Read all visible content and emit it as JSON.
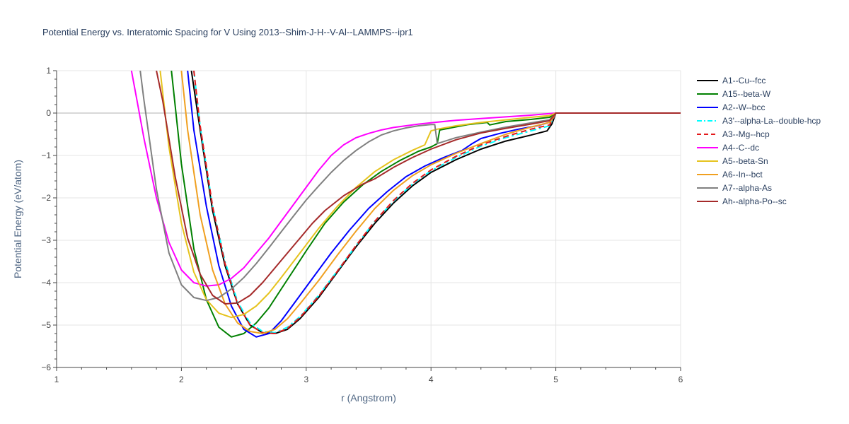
{
  "chart_data": {
    "type": "line",
    "title": "Potential Energy vs. Interatomic Spacing for V Using 2013--Shim-J-H--V-Al--LAMMPS--ipr1",
    "xlabel": "r (Angstrom)",
    "ylabel": "Potential Energy (eV/atom)",
    "xlim": [
      1,
      6
    ],
    "ylim": [
      -6,
      1
    ],
    "xticks": [
      1,
      2,
      3,
      4,
      5,
      6
    ],
    "yticks": [
      -6,
      -5,
      -4,
      -3,
      -2,
      -1,
      0,
      1
    ],
    "xtick_labels": [
      "1",
      "2",
      "3",
      "4",
      "5",
      "6"
    ],
    "ytick_labels": [
      "−6",
      "−5",
      "−4",
      "−3",
      "−2",
      "−1",
      "0",
      "1"
    ],
    "grid": true,
    "legend_position": "top-right",
    "series": [
      {
        "name": "A1--Cu--fcc",
        "color": "#000000",
        "dash": "solid",
        "x": [
          2.08,
          2.15,
          2.25,
          2.35,
          2.45,
          2.55,
          2.65,
          2.75,
          2.85,
          2.95,
          3.1,
          3.25,
          3.4,
          3.55,
          3.7,
          3.85,
          4.0,
          4.2,
          4.4,
          4.6,
          4.8,
          4.93,
          4.97,
          5.0,
          6.0
        ],
        "y": [
          1,
          -0.4,
          -2.3,
          -3.6,
          -4.5,
          -5.0,
          -5.18,
          -5.2,
          -5.1,
          -4.85,
          -4.35,
          -3.75,
          -3.15,
          -2.6,
          -2.12,
          -1.72,
          -1.4,
          -1.1,
          -0.85,
          -0.66,
          -0.52,
          -0.42,
          -0.25,
          0,
          0
        ]
      },
      {
        "name": "A15--beta-W",
        "color": "#008000",
        "dash": "solid",
        "x": [
          1.92,
          2.0,
          2.1,
          2.2,
          2.3,
          2.4,
          2.5,
          2.6,
          2.7,
          2.8,
          2.9,
          3.0,
          3.15,
          3.3,
          3.45,
          3.6,
          3.75,
          3.9,
          4.0,
          4.05,
          4.07,
          4.3,
          4.45,
          4.47,
          4.6,
          4.8,
          4.95,
          5.0,
          6.0
        ],
        "y": [
          1,
          -1.2,
          -3.2,
          -4.4,
          -5.05,
          -5.28,
          -5.2,
          -4.95,
          -4.6,
          -4.15,
          -3.7,
          -3.25,
          -2.6,
          -2.1,
          -1.7,
          -1.38,
          -1.12,
          -0.9,
          -0.8,
          -0.72,
          -0.4,
          -0.27,
          -0.22,
          -0.28,
          -0.2,
          -0.15,
          -0.1,
          0,
          0
        ]
      },
      {
        "name": "A2--W--bcc",
        "color": "#0000ff",
        "dash": "solid",
        "x": [
          2.05,
          2.1,
          2.2,
          2.3,
          2.4,
          2.5,
          2.6,
          2.7,
          2.8,
          2.9,
          3.05,
          3.2,
          3.35,
          3.5,
          3.65,
          3.8,
          3.95,
          4.1,
          4.25,
          4.3,
          4.33,
          4.4,
          4.55,
          4.7,
          4.85,
          4.95,
          5.0,
          6.0
        ],
        "y": [
          1,
          -0.4,
          -2.2,
          -3.6,
          -4.55,
          -5.1,
          -5.28,
          -5.2,
          -4.9,
          -4.5,
          -3.9,
          -3.3,
          -2.75,
          -2.25,
          -1.85,
          -1.5,
          -1.25,
          -1.05,
          -0.88,
          -0.78,
          -0.72,
          -0.6,
          -0.48,
          -0.38,
          -0.3,
          -0.22,
          0,
          0
        ]
      },
      {
        "name": "A3'--alpha-La--double-hcp",
        "color": "#00ffff",
        "dash": "dashdot",
        "x": [
          2.1,
          2.15,
          2.25,
          2.35,
          2.45,
          2.55,
          2.65,
          2.75,
          2.85,
          2.95,
          3.1,
          3.25,
          3.4,
          3.55,
          3.7,
          3.85,
          4.0,
          4.2,
          4.4,
          4.6,
          4.8,
          4.95,
          5.0,
          6.0
        ],
        "y": [
          1,
          -0.3,
          -2.2,
          -3.5,
          -4.45,
          -4.95,
          -5.15,
          -5.18,
          -5.05,
          -4.8,
          -4.3,
          -3.72,
          -3.12,
          -2.55,
          -2.08,
          -1.68,
          -1.36,
          -1.05,
          -0.78,
          -0.58,
          -0.42,
          -0.3,
          0,
          0
        ]
      },
      {
        "name": "A3--Mg--hcp",
        "color": "#e31a1c",
        "dash": "dash",
        "x": [
          2.1,
          2.15,
          2.25,
          2.35,
          2.45,
          2.55,
          2.65,
          2.75,
          2.85,
          2.95,
          3.1,
          3.25,
          3.4,
          3.55,
          3.7,
          3.85,
          4.0,
          4.2,
          4.4,
          4.6,
          4.8,
          4.95,
          5.0,
          6.0
        ],
        "y": [
          1,
          -0.3,
          -2.2,
          -3.55,
          -4.5,
          -5.0,
          -5.18,
          -5.2,
          -5.08,
          -4.82,
          -4.32,
          -3.73,
          -3.12,
          -2.55,
          -2.06,
          -1.66,
          -1.34,
          -1.02,
          -0.75,
          -0.55,
          -0.38,
          -0.28,
          0,
          0
        ]
      },
      {
        "name": "A4--C--dc",
        "color": "#ff00ff",
        "dash": "solid",
        "x": [
          1.6,
          1.65,
          1.7,
          1.8,
          1.9,
          2.0,
          2.1,
          2.2,
          2.3,
          2.4,
          2.5,
          2.6,
          2.7,
          2.8,
          2.9,
          3.0,
          3.1,
          3.2,
          3.3,
          3.4,
          3.5,
          3.6,
          3.7,
          3.8,
          3.9,
          4.0,
          4.2,
          4.4,
          4.6,
          4.8,
          5.0,
          6.0
        ],
        "y": [
          1,
          0.2,
          -0.6,
          -2.0,
          -3.05,
          -3.7,
          -4.0,
          -4.08,
          -4.05,
          -3.9,
          -3.65,
          -3.3,
          -2.95,
          -2.55,
          -2.15,
          -1.75,
          -1.35,
          -1.0,
          -0.75,
          -0.58,
          -0.48,
          -0.4,
          -0.34,
          -0.3,
          -0.26,
          -0.23,
          -0.17,
          -0.13,
          -0.09,
          -0.05,
          0,
          0
        ]
      },
      {
        "name": "A5--beta-Sn",
        "color": "#e6c31e",
        "dash": "solid",
        "x": [
          1.83,
          1.9,
          2.0,
          2.1,
          2.2,
          2.3,
          2.4,
          2.5,
          2.6,
          2.7,
          2.8,
          2.95,
          3.1,
          3.25,
          3.4,
          3.55,
          3.7,
          3.85,
          3.95,
          4.0,
          4.05,
          4.2,
          4.4,
          4.6,
          4.8,
          4.95,
          5.0,
          6.0
        ],
        "y": [
          1,
          -0.8,
          -2.6,
          -3.75,
          -4.4,
          -4.72,
          -4.82,
          -4.75,
          -4.55,
          -4.25,
          -3.88,
          -3.3,
          -2.72,
          -2.2,
          -1.75,
          -1.38,
          -1.1,
          -0.88,
          -0.75,
          -0.42,
          -0.38,
          -0.3,
          -0.22,
          -0.16,
          -0.1,
          -0.06,
          0,
          0
        ]
      },
      {
        "name": "A6--In--bct",
        "color": "#f0a020",
        "dash": "solid",
        "x": [
          2.0,
          2.05,
          2.15,
          2.25,
          2.35,
          2.45,
          2.55,
          2.65,
          2.75,
          2.85,
          2.95,
          3.1,
          3.25,
          3.4,
          3.55,
          3.7,
          3.85,
          4.0,
          4.2,
          4.4,
          4.6,
          4.8,
          4.95,
          5.0,
          6.0
        ],
        "y": [
          1,
          -0.4,
          -2.4,
          -3.7,
          -4.5,
          -4.95,
          -5.15,
          -5.2,
          -5.1,
          -4.85,
          -4.5,
          -3.95,
          -3.35,
          -2.78,
          -2.25,
          -1.82,
          -1.48,
          -1.22,
          -0.95,
          -0.72,
          -0.5,
          -0.33,
          -0.22,
          0,
          0
        ]
      },
      {
        "name": "A7--alpha-As",
        "color": "#808080",
        "dash": "solid",
        "x": [
          1.67,
          1.7,
          1.8,
          1.9,
          2.0,
          2.1,
          2.2,
          2.3,
          2.4,
          2.5,
          2.6,
          2.7,
          2.8,
          2.9,
          3.0,
          3.1,
          3.2,
          3.3,
          3.4,
          3.5,
          3.6,
          3.7,
          3.8,
          3.9,
          4.0,
          4.03,
          4.05,
          4.2,
          4.4,
          4.6,
          4.8,
          4.95,
          5.0,
          6.0
        ],
        "y": [
          1,
          0.3,
          -1.8,
          -3.3,
          -4.05,
          -4.35,
          -4.42,
          -4.35,
          -4.15,
          -3.88,
          -3.55,
          -3.18,
          -2.8,
          -2.42,
          -2.05,
          -1.72,
          -1.4,
          -1.12,
          -0.88,
          -0.68,
          -0.52,
          -0.42,
          -0.35,
          -0.3,
          -0.27,
          -0.27,
          -0.72,
          -0.58,
          -0.45,
          -0.33,
          -0.23,
          -0.16,
          0,
          0
        ]
      },
      {
        "name": "Ah--alpha-Po--sc",
        "color": "#a52a2a",
        "dash": "solid",
        "x": [
          1.8,
          1.85,
          1.95,
          2.05,
          2.15,
          2.25,
          2.35,
          2.45,
          2.55,
          2.65,
          2.75,
          2.85,
          2.95,
          3.05,
          3.15,
          3.3,
          3.45,
          3.55,
          3.7,
          3.85,
          4.0,
          4.2,
          4.4,
          4.6,
          4.8,
          4.95,
          5.0,
          6.0
        ],
        "y": [
          1,
          0.3,
          -1.5,
          -2.95,
          -3.8,
          -4.3,
          -4.5,
          -4.48,
          -4.3,
          -4.0,
          -3.65,
          -3.3,
          -2.95,
          -2.6,
          -2.3,
          -1.95,
          -1.68,
          -1.55,
          -1.28,
          -1.05,
          -0.85,
          -0.63,
          -0.47,
          -0.36,
          -0.26,
          -0.18,
          0,
          0
        ]
      }
    ]
  }
}
